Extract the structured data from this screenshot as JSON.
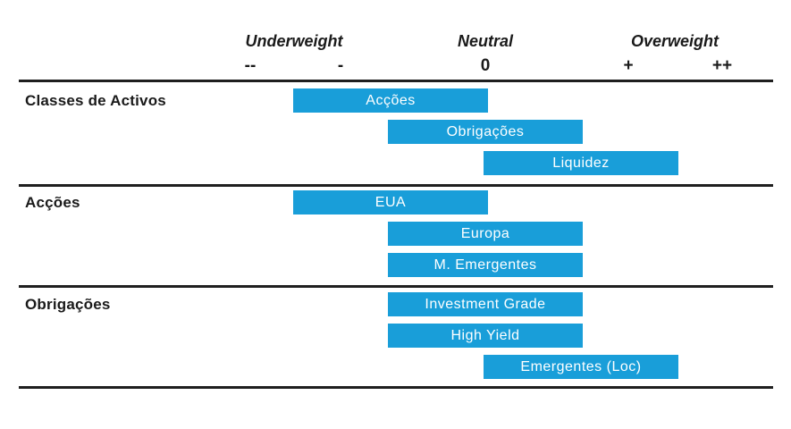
{
  "chart_data": {
    "type": "bar",
    "description": "Asset allocation positioning chart: horizontal bars placed on an underweight/neutral/overweight scale",
    "scale": {
      "header_labels": [
        "Underweight",
        "Neutral",
        "Overweight"
      ],
      "tick_labels": [
        "--",
        "-",
        "0",
        "+",
        "++"
      ],
      "tick_values": [
        -2,
        -1,
        0,
        1,
        2
      ]
    },
    "groups": [
      {
        "label": "Classes de Activos",
        "rows": [
          {
            "label": "Acções",
            "position": "underweight",
            "offset": -1
          },
          {
            "label": "Obrigações",
            "position": "neutral",
            "offset": 0
          },
          {
            "label": "Liquidez",
            "position": "overweight",
            "offset": 1
          }
        ]
      },
      {
        "label": "Acções",
        "rows": [
          {
            "label": "EUA",
            "position": "underweight",
            "offset": -1
          },
          {
            "label": "Europa",
            "position": "neutral",
            "offset": 0
          },
          {
            "label": "M. Emergentes",
            "position": "neutral",
            "offset": 0
          }
        ]
      },
      {
        "label": "Obrigações",
        "rows": [
          {
            "label": "Investment Grade",
            "position": "neutral",
            "offset": 0
          },
          {
            "label": "High Yield",
            "position": "neutral",
            "offset": 0
          },
          {
            "label": "Emergentes (Loc)",
            "position": "overweight",
            "offset": 1
          }
        ]
      }
    ],
    "colors": {
      "bar": "#199ED9",
      "bar_text": "#FFFFFF",
      "line": "#1F1F1F",
      "text": "#1A1A1A"
    }
  }
}
